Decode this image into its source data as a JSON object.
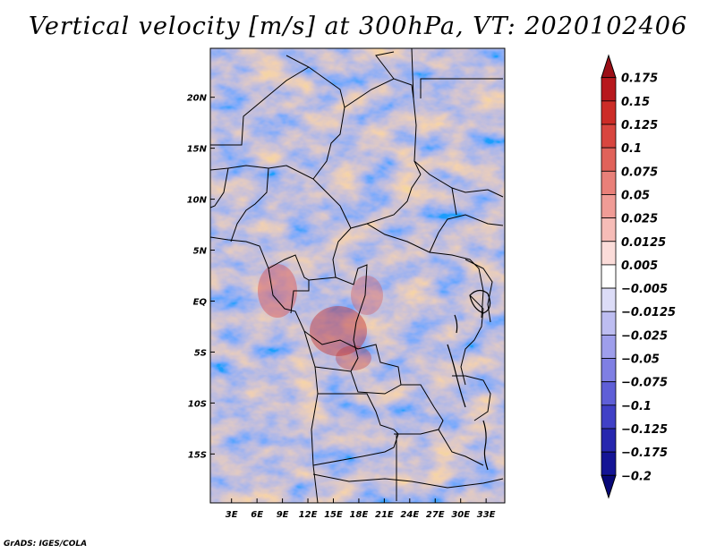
{
  "title": "Vertical velocity [m/s] at 300hPa, VT: 2020102406",
  "footer": "GrADS: IGES/COLA",
  "map": {
    "lat_labels": [
      "20N",
      "15N",
      "10N",
      "5N",
      "EQ",
      "5S",
      "10S",
      "15S"
    ],
    "lat_values": [
      20,
      15,
      10,
      5,
      0,
      -5,
      -10,
      -15
    ],
    "lon_labels": [
      "3E",
      "6E",
      "9E",
      "12E",
      "15E",
      "18E",
      "21E",
      "24E",
      "27E",
      "30E",
      "33E"
    ],
    "lon_values": [
      3,
      6,
      9,
      12,
      15,
      18,
      21,
      24,
      27,
      30,
      33
    ],
    "lon_range": [
      0.5,
      35.2
    ],
    "lat_range": [
      -19.8,
      24.8
    ]
  },
  "colorbar": {
    "labels": [
      "0.175",
      "0.15",
      "0.125",
      "0.1",
      "0.075",
      "0.05",
      "0.025",
      "0.0125",
      "0.005",
      "−0.005",
      "−0.0125",
      "−0.025",
      "−0.05",
      "−0.075",
      "−0.1",
      "−0.125",
      "−0.175",
      "−0.2"
    ],
    "colors": [
      "#9b0f17",
      "#b7181d",
      "#cc2c27",
      "#d8463f",
      "#e0625a",
      "#e98079",
      "#f09c96",
      "#f6bcb7",
      "#fbdcd9",
      "#ffffff",
      "#dcdcf7",
      "#bdbdf1",
      "#9e9eeb",
      "#7f7fe3",
      "#5f5fd7",
      "#4040c6",
      "#2626ae",
      "#141495",
      "#080878"
    ]
  }
}
